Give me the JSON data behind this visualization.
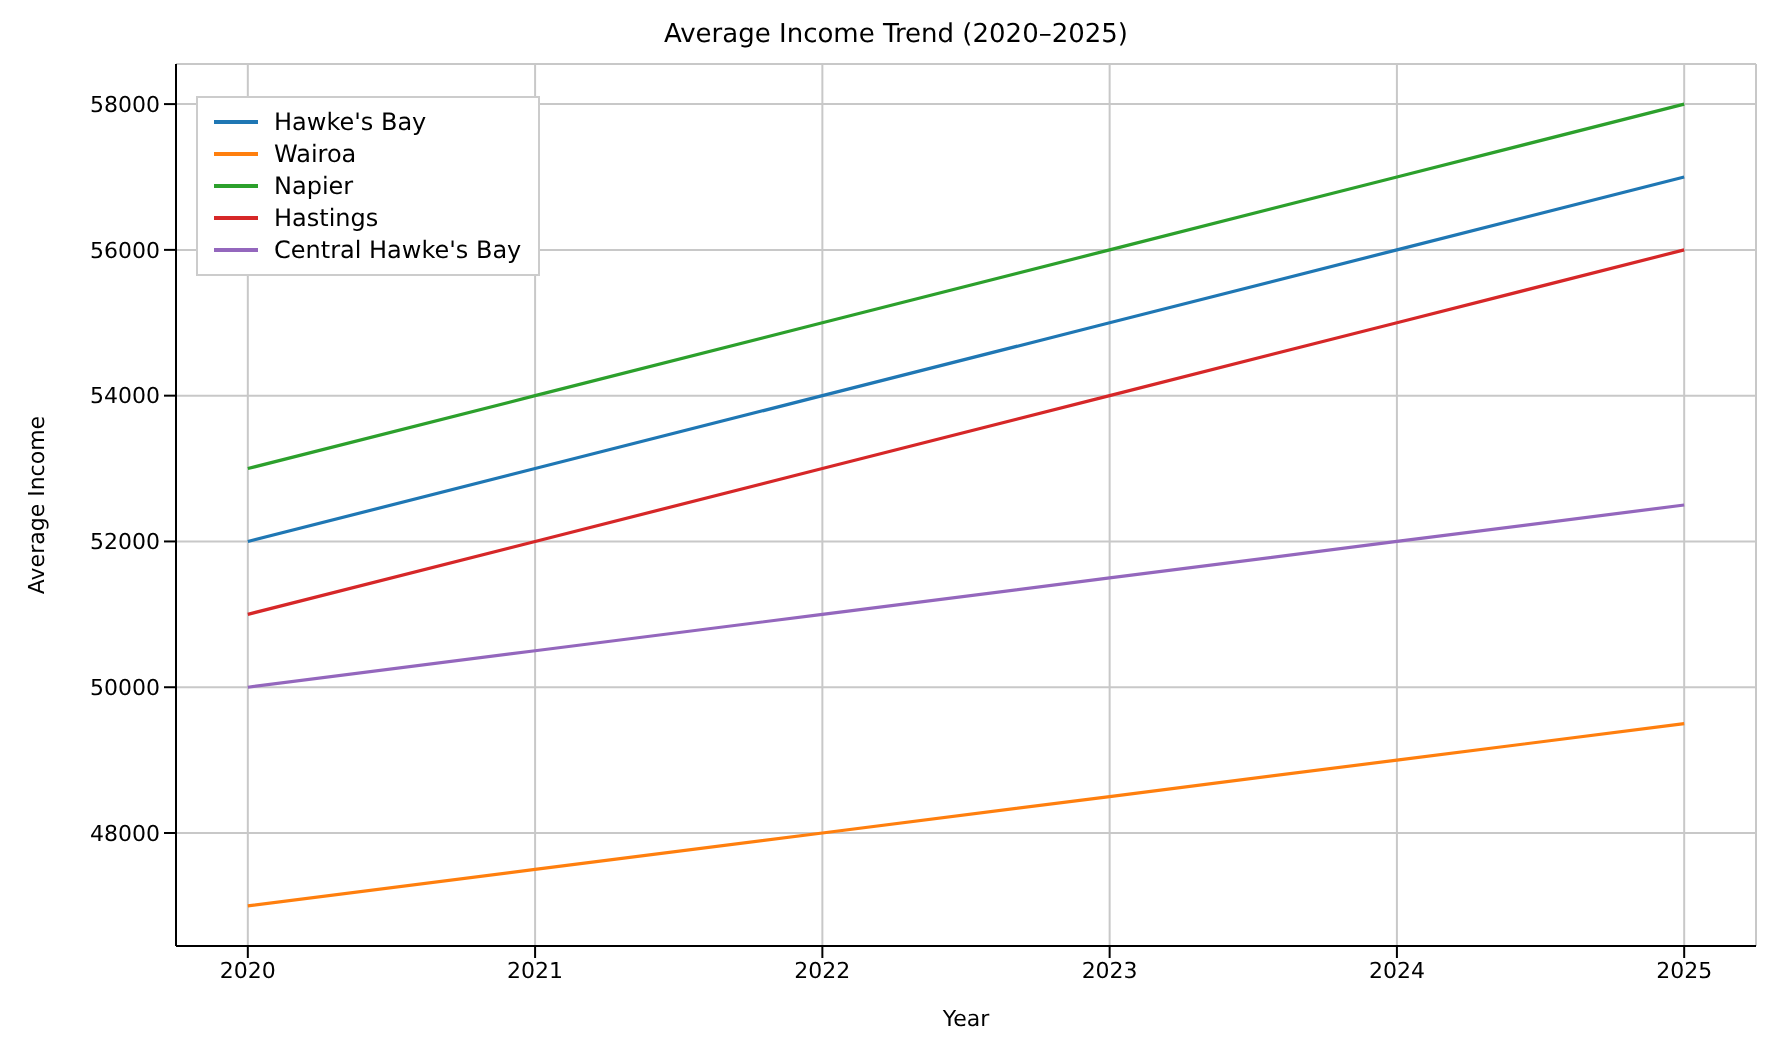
{
  "chart_data": {
    "type": "line",
    "title": "Average Income Trend (2020–2025)",
    "xlabel": "Year",
    "ylabel": "Average Income",
    "x": [
      2020,
      2021,
      2022,
      2023,
      2024,
      2025
    ],
    "series": [
      {
        "name": "Hawke's Bay",
        "color": "#1f77b4",
        "values": [
          52000,
          53000,
          54000,
          55000,
          56000,
          57000
        ]
      },
      {
        "name": "Wairoa",
        "color": "#ff7f0e",
        "values": [
          47000,
          47500,
          48000,
          48500,
          49000,
          49500
        ]
      },
      {
        "name": "Napier",
        "color": "#2ca02c",
        "values": [
          53000,
          54000,
          55000,
          56000,
          57000,
          58000
        ]
      },
      {
        "name": "Hastings",
        "color": "#d62728",
        "values": [
          51000,
          52000,
          53000,
          54000,
          55000,
          56000
        ]
      },
      {
        "name": "Central Hawke's Bay",
        "color": "#9467bd",
        "values": [
          50000,
          50500,
          51000,
          51500,
          52000,
          52500
        ]
      }
    ],
    "xlim": [
      2019.75,
      2025.25
    ],
    "xticks": [
      2020,
      2021,
      2022,
      2023,
      2024,
      2025
    ],
    "ylim": [
      46450,
      58550
    ],
    "yticks": [
      48000,
      50000,
      52000,
      54000,
      56000,
      58000
    ],
    "grid": true,
    "legend": "top left",
    "marker": "none",
    "line_style": "solid"
  }
}
